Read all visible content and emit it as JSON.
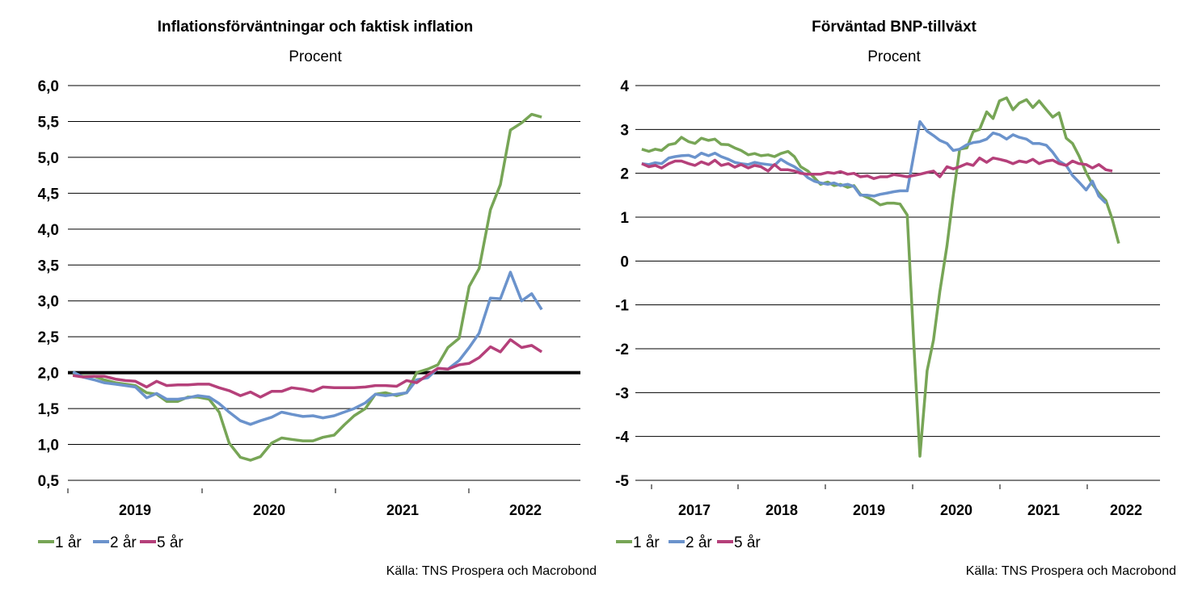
{
  "colors": {
    "series_1": "#77a556",
    "series_2": "#6b93cc",
    "series_3": "#b5407a",
    "reference": "#000000",
    "grid": "#000000"
  },
  "chart_data": [
    {
      "type": "line",
      "title": "Inflationsförväntningar och faktisk inflation",
      "subtitle": "Procent",
      "source": "Källa: TNS Prospera och Macrobond",
      "ylim": [
        0.5,
        6.0
      ],
      "yticks": [
        "6,0",
        "5,5",
        "5,0",
        "4,5",
        "4,0",
        "3,5",
        "3,0",
        "2,5",
        "2,0",
        "1,5",
        "1,0",
        "0,5"
      ],
      "xlim": [
        2018.5,
        2022.6
      ],
      "xticks": [
        "2019",
        "2020",
        "2021",
        "2022"
      ],
      "grid": true,
      "legend": "bottom-left",
      "reference_line": 2.0,
      "series": [
        {
          "name": "1 år",
          "x": [
            2018.54,
            2018.62,
            2018.71,
            2018.79,
            2018.88,
            2018.96,
            2019.04,
            2019.13,
            2019.21,
            2019.29,
            2019.38,
            2019.46,
            2019.54,
            2019.63,
            2019.71,
            2019.79,
            2019.88,
            2019.96,
            2020.04,
            2020.13,
            2020.21,
            2020.29,
            2020.38,
            2020.46,
            2020.54,
            2020.63,
            2020.71,
            2020.79,
            2020.88,
            2020.96,
            2021.04,
            2021.13,
            2021.21,
            2021.29,
            2021.38,
            2021.46,
            2021.54,
            2021.63,
            2021.71,
            2021.79,
            2021.88,
            2021.96,
            2022.04,
            2022.13,
            2022.21,
            2022.29,
            2022.38,
            2022.46,
            2022.54
          ],
          "values": [
            1.98,
            1.95,
            1.95,
            1.9,
            1.86,
            1.84,
            1.82,
            1.72,
            1.7,
            1.6,
            1.6,
            1.66,
            1.66,
            1.63,
            1.45,
            1.02,
            0.82,
            0.78,
            0.83,
            1.02,
            1.09,
            1.07,
            1.05,
            1.05,
            1.1,
            1.13,
            1.27,
            1.4,
            1.5,
            1.7,
            1.72,
            1.68,
            1.72,
            2.0,
            2.05,
            2.11,
            2.35,
            2.48,
            3.2,
            3.45,
            4.27,
            4.62,
            5.38,
            5.48,
            5.6,
            5.56,
            null,
            null,
            null
          ]
        },
        {
          "name": "2 år",
          "x": [
            2018.54,
            2018.62,
            2018.71,
            2018.79,
            2018.88,
            2018.96,
            2019.04,
            2019.13,
            2019.21,
            2019.29,
            2019.38,
            2019.46,
            2019.54,
            2019.63,
            2019.71,
            2019.79,
            2019.88,
            2019.96,
            2020.04,
            2020.13,
            2020.21,
            2020.29,
            2020.38,
            2020.46,
            2020.54,
            2020.63,
            2020.71,
            2020.79,
            2020.88,
            2020.96,
            2021.04,
            2021.13,
            2021.21,
            2021.29,
            2021.38,
            2021.46,
            2021.54,
            2021.63,
            2021.71,
            2021.79,
            2021.88,
            2021.96,
            2022.04,
            2022.13,
            2022.21,
            2022.29,
            2022.38
          ],
          "values": [
            2.01,
            1.94,
            1.9,
            1.86,
            1.84,
            1.82,
            1.8,
            1.65,
            1.71,
            1.63,
            1.63,
            1.65,
            1.68,
            1.66,
            1.57,
            1.45,
            1.33,
            1.28,
            1.33,
            1.38,
            1.45,
            1.42,
            1.39,
            1.4,
            1.37,
            1.4,
            1.45,
            1.5,
            1.58,
            1.7,
            1.68,
            1.7,
            1.72,
            1.9,
            1.93,
            2.06,
            2.05,
            2.17,
            2.35,
            2.55,
            3.04,
            3.03,
            3.4,
            3.0,
            3.1,
            2.88,
            null
          ]
        },
        {
          "name": "5 år",
          "x": [
            2018.54,
            2018.62,
            2018.71,
            2018.79,
            2018.88,
            2018.96,
            2019.04,
            2019.13,
            2019.21,
            2019.29,
            2019.38,
            2019.46,
            2019.54,
            2019.63,
            2019.71,
            2019.79,
            2019.88,
            2019.96,
            2020.04,
            2020.13,
            2020.21,
            2020.29,
            2020.38,
            2020.46,
            2020.54,
            2020.63,
            2020.71,
            2020.79,
            2020.88,
            2020.96,
            2021.04,
            2021.13,
            2021.21,
            2021.29,
            2021.38,
            2021.46,
            2021.54,
            2021.63,
            2021.71,
            2021.79,
            2021.88,
            2021.96,
            2022.04,
            2022.13,
            2022.21,
            2022.29,
            2022.38
          ],
          "values": [
            1.96,
            1.94,
            1.95,
            1.95,
            1.91,
            1.89,
            1.88,
            1.8,
            1.88,
            1.82,
            1.83,
            1.83,
            1.84,
            1.84,
            1.79,
            1.75,
            1.68,
            1.73,
            1.66,
            1.74,
            1.74,
            1.79,
            1.77,
            1.74,
            1.8,
            1.79,
            1.79,
            1.79,
            1.8,
            1.82,
            1.82,
            1.81,
            1.89,
            1.86,
            1.97,
            2.06,
            2.05,
            2.11,
            2.13,
            2.21,
            2.36,
            2.29,
            2.46,
            2.35,
            2.38,
            2.29,
            null
          ]
        }
      ]
    },
    {
      "type": "line",
      "title": "Förväntad BNP-tillväxt",
      "subtitle": "Procent",
      "source": "Källa: TNS Prospera och Macrobond",
      "ylim": [
        -5,
        4
      ],
      "yticks": [
        "4",
        "3",
        "2",
        "1",
        "0",
        "-1",
        "-2",
        "-3",
        "-4",
        "-5"
      ],
      "xlim": [
        2016.0,
        2022.6
      ],
      "xticks": [
        "2017",
        "2018",
        "2019",
        "2020",
        "2021",
        "2022"
      ],
      "grid": true,
      "legend": "bottom-left",
      "series": [
        {
          "name": "1 år",
          "x": [
            2016.08,
            2016.17,
            2016.25,
            2016.33,
            2016.42,
            2016.5,
            2016.58,
            2016.67,
            2016.75,
            2016.83,
            2016.92,
            2017.0,
            2017.08,
            2017.17,
            2017.25,
            2017.33,
            2017.42,
            2017.5,
            2017.58,
            2017.67,
            2017.75,
            2017.83,
            2017.92,
            2018.0,
            2018.08,
            2018.17,
            2018.25,
            2018.33,
            2018.42,
            2018.5,
            2018.58,
            2018.67,
            2018.75,
            2018.83,
            2018.92,
            2019.0,
            2019.08,
            2019.17,
            2019.25,
            2019.33,
            2019.42,
            2019.5,
            2019.58,
            2019.67,
            2019.75,
            2019.83,
            2019.92,
            2020.0,
            2020.08,
            2020.17,
            2020.25,
            2020.33,
            2020.42,
            2020.5,
            2020.58,
            2020.67,
            2020.75,
            2020.83,
            2020.92,
            2021.0,
            2021.08,
            2021.17,
            2021.25,
            2021.33,
            2021.42,
            2021.5,
            2021.58,
            2021.67,
            2021.75,
            2021.83,
            2021.92,
            2022.0,
            2022.08,
            2022.17,
            2022.25,
            2022.33,
            2022.42
          ],
          "values": [
            2.55,
            2.5,
            2.55,
            2.52,
            2.65,
            2.68,
            2.82,
            2.72,
            2.68,
            2.8,
            2.75,
            2.78,
            2.66,
            2.65,
            2.58,
            2.52,
            2.42,
            2.45,
            2.4,
            2.42,
            2.38,
            2.45,
            2.5,
            2.38,
            2.15,
            2.05,
            1.9,
            1.75,
            1.8,
            1.72,
            1.75,
            1.68,
            1.72,
            1.52,
            1.45,
            1.38,
            1.28,
            1.32,
            1.32,
            1.3,
            1.05,
            -1.8,
            -4.45,
            -2.5,
            -1.8,
            -0.7,
            0.35,
            1.5,
            2.55,
            2.58,
            2.95,
            3.0,
            3.4,
            3.25,
            3.65,
            3.72,
            3.45,
            3.6,
            3.68,
            3.5,
            3.65,
            3.45,
            3.28,
            3.38,
            2.8,
            2.68,
            2.4,
            2.02,
            1.75,
            1.55,
            1.38,
            0.95,
            0.4,
            null,
            null,
            null,
            null
          ]
        },
        {
          "name": "2 år",
          "x": [
            2016.08,
            2016.17,
            2016.25,
            2016.33,
            2016.42,
            2016.5,
            2016.58,
            2016.67,
            2016.75,
            2016.83,
            2016.92,
            2017.0,
            2017.08,
            2017.17,
            2017.25,
            2017.33,
            2017.42,
            2017.5,
            2017.58,
            2017.67,
            2017.75,
            2017.83,
            2017.92,
            2018.0,
            2018.08,
            2018.17,
            2018.25,
            2018.33,
            2018.42,
            2018.5,
            2018.58,
            2018.67,
            2018.75,
            2018.83,
            2018.92,
            2019.0,
            2019.08,
            2019.17,
            2019.25,
            2019.33,
            2019.42,
            2019.5,
            2019.58,
            2019.67,
            2019.75,
            2019.83,
            2019.92,
            2020.0,
            2020.08,
            2020.17,
            2020.25,
            2020.33,
            2020.42,
            2020.5,
            2020.58,
            2020.67,
            2020.75,
            2020.83,
            2020.92,
            2021.0,
            2021.08,
            2021.17,
            2021.25,
            2021.33,
            2021.42,
            2021.5,
            2021.58,
            2021.67,
            2021.75,
            2021.83,
            2021.92,
            2022.0,
            2022.08,
            2022.17,
            2022.25,
            2022.33,
            2022.42
          ],
          "values": [
            2.22,
            2.2,
            2.24,
            2.22,
            2.35,
            2.38,
            2.4,
            2.41,
            2.36,
            2.46,
            2.4,
            2.46,
            2.38,
            2.32,
            2.25,
            2.22,
            2.2,
            2.25,
            2.22,
            2.2,
            2.18,
            2.32,
            2.22,
            2.15,
            2.05,
            1.9,
            1.82,
            1.78,
            1.75,
            1.78,
            1.72,
            1.75,
            1.7,
            1.5,
            1.5,
            1.48,
            1.52,
            1.55,
            1.58,
            1.6,
            1.6,
            2.4,
            3.18,
            2.96,
            2.86,
            2.75,
            2.68,
            2.52,
            2.55,
            2.65,
            2.7,
            2.72,
            2.78,
            2.92,
            2.88,
            2.78,
            2.88,
            2.82,
            2.78,
            2.68,
            2.68,
            2.64,
            2.48,
            2.28,
            2.18,
            1.95,
            1.8,
            1.62,
            1.82,
            1.48,
            1.32,
            null,
            null,
            null,
            null,
            null,
            null
          ]
        },
        {
          "name": "5 år",
          "x": [
            2016.08,
            2016.17,
            2016.25,
            2016.33,
            2016.42,
            2016.5,
            2016.58,
            2016.67,
            2016.75,
            2016.83,
            2016.92,
            2017.0,
            2017.08,
            2017.17,
            2017.25,
            2017.33,
            2017.42,
            2017.5,
            2017.58,
            2017.67,
            2017.75,
            2017.83,
            2017.92,
            2018.0,
            2018.08,
            2018.17,
            2018.25,
            2018.33,
            2018.42,
            2018.5,
            2018.58,
            2018.67,
            2018.75,
            2018.83,
            2018.92,
            2019.0,
            2019.08,
            2019.17,
            2019.25,
            2019.33,
            2019.42,
            2019.5,
            2019.58,
            2019.67,
            2019.75,
            2019.83,
            2019.92,
            2020.0,
            2020.08,
            2020.17,
            2020.25,
            2020.33,
            2020.42,
            2020.5,
            2020.58,
            2020.67,
            2020.75,
            2020.83,
            2020.92,
            2021.0,
            2021.08,
            2021.17,
            2021.25,
            2021.33,
            2021.42,
            2021.5,
            2021.58,
            2021.67,
            2021.75,
            2021.83,
            2021.92,
            2022.0,
            2022.08,
            2022.17,
            2022.25,
            2022.33,
            2022.42
          ],
          "values": [
            2.22,
            2.15,
            2.18,
            2.12,
            2.22,
            2.28,
            2.28,
            2.22,
            2.18,
            2.26,
            2.2,
            2.3,
            2.18,
            2.22,
            2.14,
            2.2,
            2.12,
            2.18,
            2.15,
            2.05,
            2.2,
            2.08,
            2.08,
            2.05,
            2.0,
            1.98,
            1.98,
            1.98,
            2.02,
            2.0,
            2.04,
            1.98,
            2.0,
            1.92,
            1.94,
            1.88,
            1.92,
            1.92,
            1.97,
            1.95,
            1.92,
            1.95,
            1.98,
            2.02,
            2.05,
            1.92,
            2.15,
            2.1,
            2.15,
            2.22,
            2.18,
            2.35,
            2.25,
            2.35,
            2.32,
            2.28,
            2.22,
            2.28,
            2.25,
            2.32,
            2.22,
            2.28,
            2.3,
            2.22,
            2.18,
            2.28,
            2.22,
            2.2,
            2.12,
            2.2,
            2.08,
            2.05,
            null,
            null,
            null,
            null,
            null
          ]
        }
      ]
    }
  ]
}
